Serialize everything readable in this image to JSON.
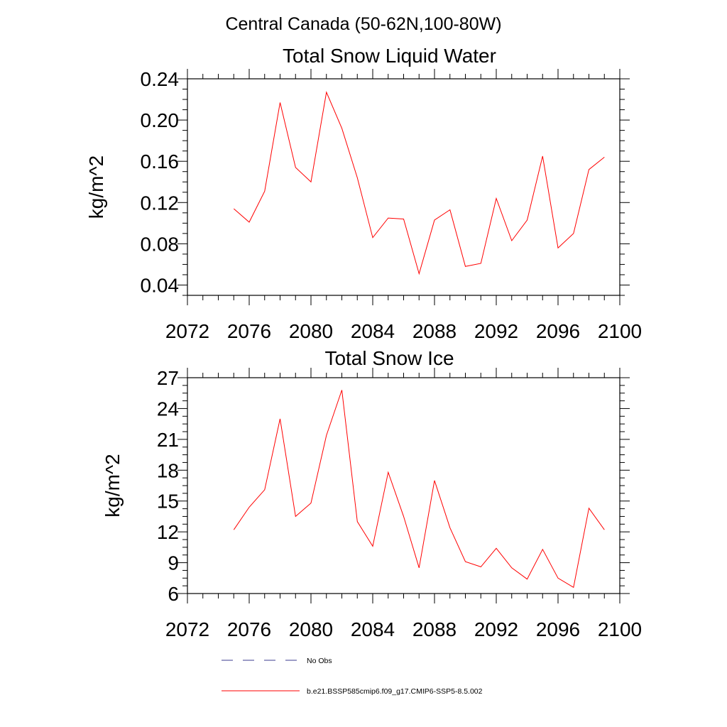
{
  "figure": {
    "suptitle": "Central Canada (50-62N,100-80W)"
  },
  "legend": {
    "entries": [
      {
        "label": "No Obs",
        "color": "#3b3b8f",
        "style": "dashed"
      },
      {
        "label": "b.e21.BSSP585cmip6.f09_g17.CMIP6-SSP5-8.5.002",
        "color": "#ff0000",
        "style": "solid"
      }
    ]
  },
  "chart_data": [
    {
      "type": "line",
      "title": "Total Snow Liquid Water",
      "ylabel": "kg/m^2",
      "xlabel": "",
      "xlim": [
        2072,
        2100
      ],
      "ylim": [
        0.03,
        0.24
      ],
      "x_ticks": [
        2072,
        2076,
        2080,
        2084,
        2088,
        2092,
        2096,
        2100
      ],
      "x_tick_labels": [
        "2072",
        "2076",
        "2080",
        "2084",
        "2088",
        "2092",
        "2096",
        "2100"
      ],
      "y_ticks": [
        0.04,
        0.08,
        0.12,
        0.16,
        0.2,
        0.24
      ],
      "y_tick_labels": [
        "0.04",
        "0.08",
        "0.12",
        "0.16",
        "0.20",
        "0.24"
      ],
      "grid": false,
      "series": [
        {
          "color": "#ff0000",
          "x": [
            2075,
            2076,
            2077,
            2078,
            2079,
            2080,
            2081,
            2082,
            2083,
            2084,
            2085,
            2086,
            2087,
            2088,
            2089,
            2090,
            2091,
            2092,
            2093,
            2094,
            2095,
            2096,
            2097,
            2098,
            2099
          ],
          "y": [
            0.114,
            0.101,
            0.131,
            0.217,
            0.154,
            0.14,
            0.227,
            0.192,
            0.144,
            0.086,
            0.105,
            0.104,
            0.051,
            0.103,
            0.113,
            0.058,
            0.061,
            0.124,
            0.083,
            0.103,
            0.165,
            0.076,
            0.09,
            0.152,
            0.164
          ]
        }
      ]
    },
    {
      "type": "line",
      "title": "Total Snow Ice",
      "ylabel": "kg/m^2",
      "xlabel": "",
      "xlim": [
        2072,
        2100
      ],
      "ylim": [
        6,
        27
      ],
      "x_ticks": [
        2072,
        2076,
        2080,
        2084,
        2088,
        2092,
        2096,
        2100
      ],
      "x_tick_labels": [
        "2072",
        "2076",
        "2080",
        "2084",
        "2088",
        "2092",
        "2096",
        "2100"
      ],
      "y_ticks": [
        6,
        9,
        12,
        15,
        18,
        21,
        24,
        27
      ],
      "y_tick_labels": [
        "6",
        "9",
        "12",
        "15",
        "18",
        "21",
        "24",
        "27"
      ],
      "grid": false,
      "series": [
        {
          "color": "#ff0000",
          "x": [
            2075,
            2076,
            2077,
            2078,
            2079,
            2080,
            2081,
            2082,
            2083,
            2084,
            2085,
            2086,
            2087,
            2088,
            2089,
            2090,
            2091,
            2092,
            2093,
            2094,
            2095,
            2096,
            2097,
            2098,
            2099
          ],
          "y": [
            12.2,
            14.4,
            16.1,
            23.0,
            13.5,
            14.8,
            21.4,
            25.8,
            13.0,
            10.6,
            17.8,
            13.5,
            8.5,
            17.0,
            12.4,
            9.1,
            8.6,
            10.4,
            8.5,
            7.4,
            10.3,
            7.5,
            6.6,
            14.3,
            12.2
          ]
        }
      ]
    }
  ]
}
